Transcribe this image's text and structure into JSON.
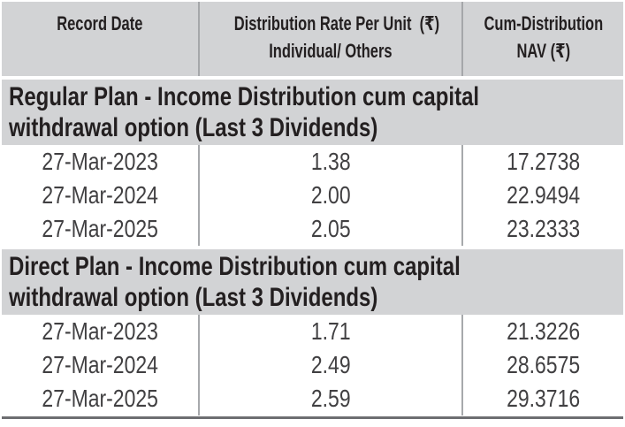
{
  "colors": {
    "band_background": "#d2d3d5",
    "header_text": "#231f20",
    "data_text": "#414042",
    "column_divider": "#a7a9ac",
    "bottom_rule": "#6d6e71"
  },
  "table": {
    "header": {
      "record_date": "Record Date",
      "distribution_rate_label": "Distribution Rate Per Unit  (₹)",
      "distribution_rate_sublabel": "Individual/ Others",
      "cum_distribution_nav": "Cum-Distribution\nNAV (₹)"
    },
    "sections": [
      {
        "title": "Regular Plan - Income Distribution cum capital\nwithdrawal option (Last 3 Dividends)",
        "rows": [
          {
            "record_date": "27-Mar-2023",
            "rate_per_unit": "1.38",
            "cum_nav": "17.2738"
          },
          {
            "record_date": "27-Mar-2024",
            "rate_per_unit": "2.00",
            "cum_nav": "22.9494"
          },
          {
            "record_date": "27-Mar-2025",
            "rate_per_unit": "2.05",
            "cum_nav": "23.2333"
          }
        ]
      },
      {
        "title": "Direct Plan - Income Distribution cum capital\nwithdrawal option (Last 3 Dividends)",
        "rows": [
          {
            "record_date": "27-Mar-2023",
            "rate_per_unit": "1.71",
            "cum_nav": "21.3226"
          },
          {
            "record_date": "27-Mar-2024",
            "rate_per_unit": "2.49",
            "cum_nav": "28.6575"
          },
          {
            "record_date": "27-Mar-2025",
            "rate_per_unit": "2.59",
            "cum_nav": "29.3716"
          }
        ]
      }
    ]
  }
}
